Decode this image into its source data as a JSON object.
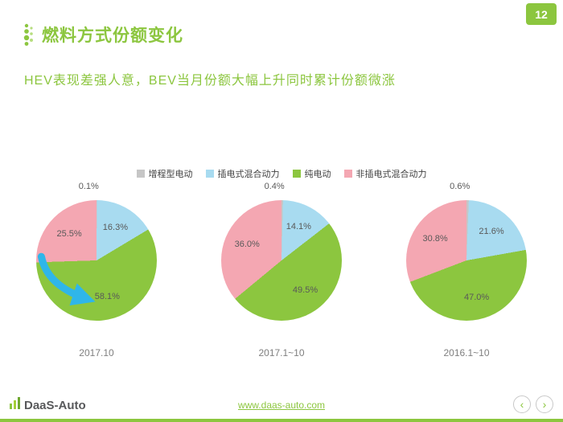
{
  "page": {
    "number": "12"
  },
  "header": {
    "title": "燃料方式份额变化",
    "subtitle": "HEV表现差强人意，BEV当月份额大幅上升同时累计份额微涨"
  },
  "legend": [
    {
      "label": "增程型电动",
      "color": "#c6c6c6"
    },
    {
      "label": "插电式混合动力",
      "color": "#a8dbf0"
    },
    {
      "label": "纯电动",
      "color": "#8cc63f"
    },
    {
      "label": "非插电式混合动力",
      "color": "#f4a7b2"
    }
  ],
  "chart_data": {
    "type": "pie",
    "series_labels": [
      "增程型电动",
      "插电式混合动力",
      "纯电动",
      "非插电式混合动力"
    ],
    "colors": [
      "#c6c6c6",
      "#a8dbf0",
      "#8cc63f",
      "#f4a7b2"
    ],
    "pies": [
      {
        "title": "2017.10",
        "values": [
          0.1,
          16.3,
          58.1,
          25.5
        ],
        "arrow": true
      },
      {
        "title": "2017.1~10",
        "values": [
          0.4,
          14.1,
          49.5,
          36.0
        ],
        "arrow": false
      },
      {
        "title": "2016.1~10",
        "values": [
          0.6,
          21.6,
          47.0,
          30.8
        ],
        "arrow": false
      }
    ],
    "annotations": {
      "arrow_color": "#2fb6e9",
      "arrow_target": "58.1%"
    }
  },
  "footer": {
    "logo": "DaaS-Auto",
    "link": "www.daas-auto.com",
    "prev": "‹",
    "next": "›"
  }
}
